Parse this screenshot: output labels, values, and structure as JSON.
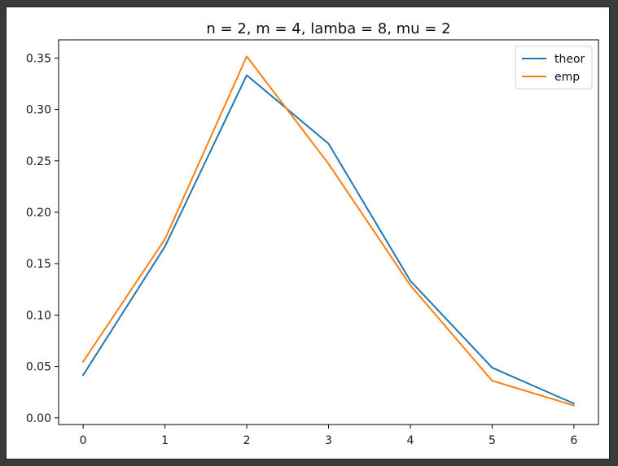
{
  "chart_data": {
    "type": "line",
    "title": "n = 2, m = 4, lamba = 8, mu = 2",
    "xlabel": "",
    "ylabel": "",
    "x": [
      0,
      1,
      2,
      3,
      4,
      5,
      6
    ],
    "xticks": [
      "0",
      "1",
      "2",
      "3",
      "4",
      "5",
      "6"
    ],
    "yticks": [
      "0.00",
      "0.05",
      "0.10",
      "0.15",
      "0.20",
      "0.25",
      "0.30",
      "0.35"
    ],
    "xlim": [
      -0.3,
      6.3
    ],
    "ylim": [
      -0.0065,
      0.3677
    ],
    "legend_position": "top-right",
    "series": [
      {
        "name": "theor",
        "color": "#1f77b4",
        "values": [
          0.0416,
          0.1667,
          0.3333,
          0.2667,
          0.1333,
          0.0488,
          0.0139
        ]
      },
      {
        "name": "emp",
        "color": "#ff7f0e",
        "values": [
          0.0547,
          0.1738,
          0.3516,
          0.2471,
          0.1289,
          0.0361,
          0.012
        ]
      }
    ]
  }
}
